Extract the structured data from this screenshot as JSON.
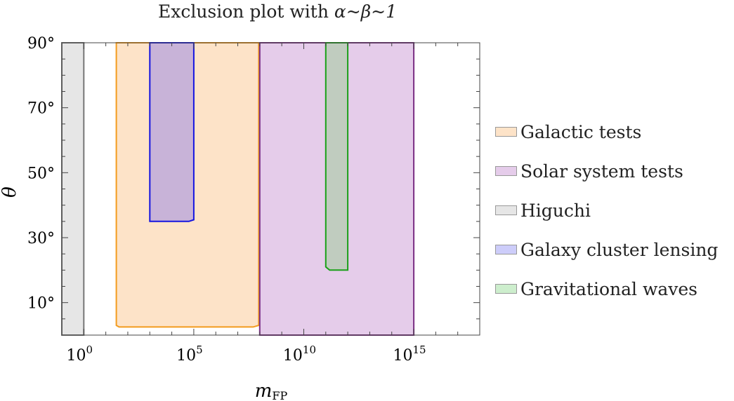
{
  "chart_data": {
    "type": "area",
    "title": "Exclusion plot with α~β~1",
    "title_parts": {
      "prefix": "Exclusion plot with ",
      "math": "α~β~1"
    },
    "xlabel": "m",
    "xlabel_sub": "FP",
    "ylabel": "θ",
    "x_scale": "log10",
    "xlim": [
      0.1,
      1e+18
    ],
    "ylim": [
      0,
      90
    ],
    "x_ticks": [
      {
        "value": 1,
        "base": "10",
        "exp": "0"
      },
      {
        "value": 100000,
        "base": "10",
        "exp": "5"
      },
      {
        "value": 10000000000,
        "base": "10",
        "exp": "10"
      },
      {
        "value": 1000000000000000,
        "base": "10",
        "exp": "15"
      }
    ],
    "y_ticks": [
      {
        "value": 10,
        "label": "10°"
      },
      {
        "value": 30,
        "label": "30°"
      },
      {
        "value": 50,
        "label": "50°"
      },
      {
        "value": 70,
        "label": "70°"
      },
      {
        "value": 90,
        "label": "90°"
      }
    ],
    "legend_placement": "right",
    "series": [
      {
        "name": "Higuchi",
        "fill": "#e6e6e6",
        "stroke": "#777777",
        "region": [
          [
            0.1,
            0
          ],
          [
            1,
            0
          ],
          [
            1,
            90
          ],
          [
            0.1,
            90
          ]
        ]
      },
      {
        "name": "Galactic tests",
        "fill": "#fde3c8",
        "stroke": "#f39c1e",
        "region": [
          [
            30.0,
            3
          ],
          [
            40.0,
            2.5
          ],
          [
            50000000.0,
            2.5
          ],
          [
            90000000.0,
            3
          ],
          [
            90000000.0,
            90
          ],
          [
            30.0,
            90
          ]
        ]
      },
      {
        "name": "Solar system tests",
        "fill": "#e5ccea",
        "stroke": "#7b2f84",
        "region": [
          [
            100000000.0,
            0
          ],
          [
            1000000000000000.0,
            0
          ],
          [
            1000000000000000.0,
            90
          ],
          [
            100000000.0,
            90
          ]
        ]
      },
      {
        "name": "Galaxy cluster lensing",
        "fill": "#c8b3d8",
        "stroke": "#1515e0",
        "region": [
          [
            1000.0,
            35
          ],
          [
            60000.0,
            35
          ],
          [
            100000.0,
            35.5
          ],
          [
            100000.0,
            90
          ],
          [
            1000.0,
            90
          ]
        ]
      },
      {
        "name": "Gravitational waves",
        "fill": "#c0ccbf",
        "stroke": "#1aa019",
        "region": [
          [
            100000000000.0,
            21
          ],
          [
            150000000000.0,
            20
          ],
          [
            1000000000000.0,
            20
          ],
          [
            1000000000000.0,
            90
          ],
          [
            100000000000.0,
            90
          ]
        ]
      }
    ],
    "legend": [
      {
        "name": "Galactic tests",
        "fill": "#fde3c8"
      },
      {
        "name": "Solar system tests",
        "fill": "#e5ccea"
      },
      {
        "name": "Higuchi",
        "fill": "#e6e6e6"
      },
      {
        "name": "Galaxy cluster lensing",
        "fill": "#cdcdfa"
      },
      {
        "name": "Gravitational waves",
        "fill": "#cdeecd"
      }
    ]
  }
}
